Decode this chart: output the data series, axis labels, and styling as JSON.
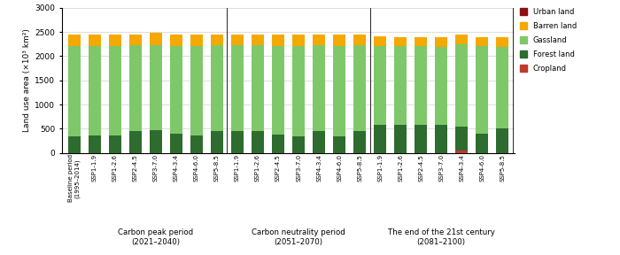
{
  "categories": [
    "Baseline period\n(1995–2014)",
    "SSP1-1.9",
    "SSP1-2.6",
    "SSP2-4.5",
    "SSP3-7.0",
    "SSP4-3.4",
    "SSP4-6.0",
    "SSP5-8.5",
    "SSP1-1.9",
    "SSP1-2.6",
    "SSP2-4.5",
    "SSP3-7.0",
    "SSP4-3.4",
    "SSP4-6.0",
    "SSP5-8.5",
    "SSP1-1.9",
    "SSP1-2.6",
    "SSP2-4.5",
    "SSP3-7.0",
    "SSP4-3.4",
    "SSP4-6.0",
    "SSP5-8.5"
  ],
  "group_labels": [
    "Carbon peak period\n(2021–2040)",
    "Carbon neutrality period\n(2051–2070)",
    "The end of the 21st century\n(2081–2100)"
  ],
  "group_boundaries": [
    1,
    8,
    15,
    22
  ],
  "cropland": [
    0,
    0,
    0,
    0,
    0,
    0,
    0,
    0,
    0,
    0,
    0,
    0,
    0,
    0,
    0,
    0,
    0,
    0,
    0,
    50,
    0,
    0
  ],
  "forest_land": [
    340,
    370,
    370,
    450,
    465,
    390,
    370,
    450,
    450,
    460,
    380,
    340,
    460,
    340,
    450,
    580,
    580,
    580,
    580,
    490,
    400,
    510
  ],
  "grassland": [
    1870,
    1840,
    1840,
    1770,
    1755,
    1820,
    1840,
    1775,
    1770,
    1760,
    1830,
    1875,
    1760,
    1875,
    1775,
    1620,
    1620,
    1620,
    1615,
    1700,
    1800,
    1680
  ],
  "barren_land": [
    235,
    235,
    235,
    230,
    270,
    235,
    235,
    220,
    220,
    220,
    230,
    230,
    220,
    230,
    220,
    200,
    195,
    195,
    200,
    205,
    195,
    205
  ],
  "urban_land": [
    0,
    0,
    0,
    0,
    0,
    0,
    0,
    0,
    0,
    0,
    0,
    0,
    0,
    0,
    0,
    0,
    0,
    0,
    0,
    0,
    0,
    0
  ],
  "colors": {
    "cropland": "#c0392b",
    "forest_land": "#2e6b2e",
    "grassland": "#7ec86a",
    "barren_land": "#f5a800",
    "urban_land": "#8b1010"
  },
  "ylim": [
    0,
    3000
  ],
  "yticks": [
    0,
    500,
    1000,
    1500,
    2000,
    2500,
    3000
  ],
  "ylabel": "Land use area (×10³ km²)",
  "bar_width": 0.6,
  "figsize": [
    7.0,
    2.88
  ],
  "dpi": 100,
  "legend_labels": [
    "Urban land",
    "Barren land",
    "Gassland",
    "Forest land",
    "Cropland"
  ],
  "legend_colors": [
    "#8b1010",
    "#f5a800",
    "#7ec86a",
    "#2e6b2e",
    "#c0392b"
  ]
}
